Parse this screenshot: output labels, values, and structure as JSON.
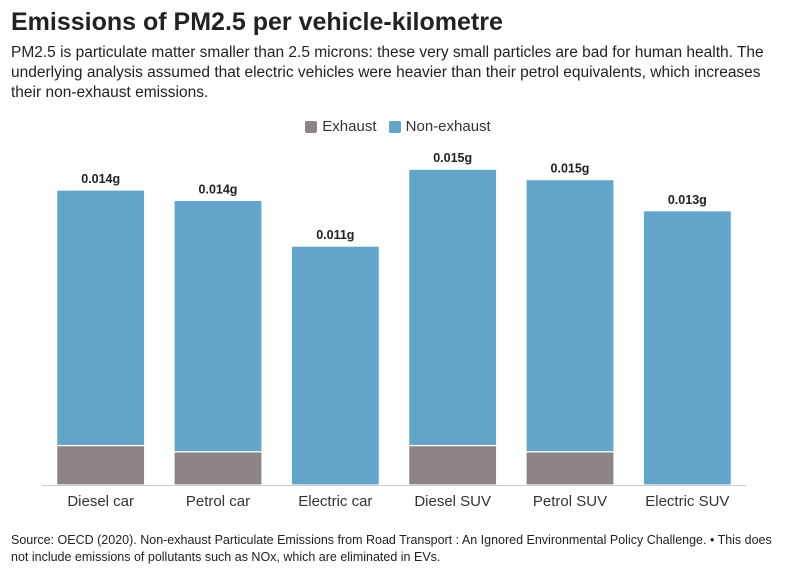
{
  "header": {
    "title": "Emissions of PM2.5 per vehicle-kilometre",
    "subtitle": "PM2.5 is particulate matter smaller than 2.5 microns: these very small particles are bad for human health. The underlying analysis assumed that electric vehicles were heavier than their petrol equivalents, which increases their non-exhaust emissions."
  },
  "footer": {
    "source": "Source: OECD (2020). Non-exhaust Particulate Emissions from Road Transport : An Ignored Environmental Policy Challenge. • This does not include emissions of pollutants such as NOx, which are eliminated in EVs."
  },
  "colors": {
    "exhaust": "#8c8485",
    "non_exhaust": "#63a4cb"
  },
  "chart_data": {
    "type": "bar",
    "stacked": true,
    "categories": [
      "Diesel car",
      "Petrol car",
      "Electric car",
      "Diesel SUV",
      "Petrol SUV",
      "Electric SUV"
    ],
    "series": [
      {
        "name": "Exhaust",
        "values": [
          0.0019,
          0.0016,
          0,
          0.0019,
          0.0016,
          0
        ]
      },
      {
        "name": "Non-exhaust",
        "values": [
          0.0123,
          0.0121,
          0.0115,
          0.0133,
          0.0131,
          0.0132
        ]
      }
    ],
    "data_labels": [
      "0.014g",
      "0.014g",
      "0.011g",
      "0.015g",
      "0.015g",
      "0.013g"
    ],
    "totals": [
      0.0142,
      0.0137,
      0.0115,
      0.0152,
      0.0147,
      0.0132
    ],
    "ylim": [
      0,
      0.0155
    ],
    "legend_position": "top-center",
    "grid": false,
    "title": "Emissions of PM2.5 per vehicle-kilometre",
    "xlabel": "",
    "ylabel": ""
  }
}
